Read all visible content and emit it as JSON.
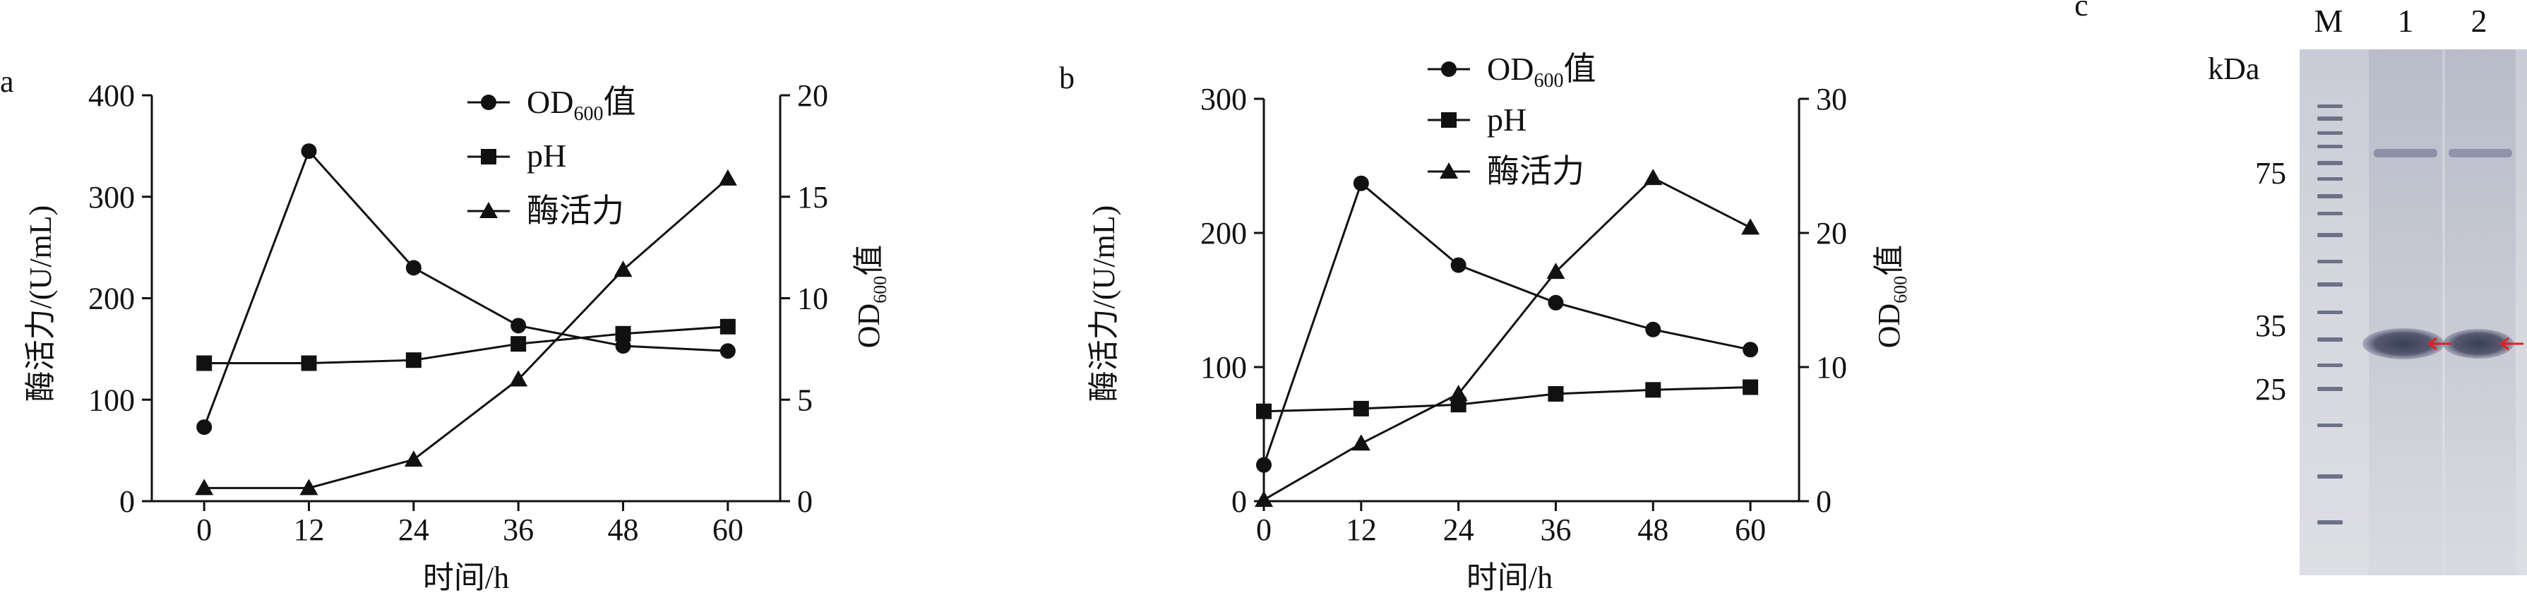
{
  "panels": [
    {
      "letter": "a",
      "xlabel": "时间/h",
      "ylabel_left": "酶活力/(U/mL)",
      "ylabel_right_main": "OD",
      "ylabel_right_sub": "600",
      "ylabel_right_tail": "值",
      "legend": [
        {
          "marker": "circle",
          "main": "OD",
          "sub": "600",
          "tail": "值"
        },
        {
          "marker": "square",
          "main": "pH",
          "sub": "",
          "tail": ""
        },
        {
          "marker": "triangle",
          "main": "酶活力",
          "sub": "",
          "tail": ""
        }
      ]
    },
    {
      "letter": "b",
      "xlabel": "时间/h",
      "ylabel_left": "酶活力/(U/mL)",
      "ylabel_right_main": "OD",
      "ylabel_right_sub": "600",
      "ylabel_right_tail": "值",
      "legend": [
        {
          "marker": "circle",
          "main": "OD",
          "sub": "600",
          "tail": "值"
        },
        {
          "marker": "square",
          "main": "pH",
          "sub": "",
          "tail": ""
        },
        {
          "marker": "triangle",
          "main": "酶活力",
          "sub": "",
          "tail": ""
        }
      ]
    }
  ],
  "chart_data": [
    {
      "type": "line",
      "panel": "a",
      "x": [
        0,
        12,
        24,
        36,
        48,
        60
      ],
      "x_ticks": [
        "0",
        "12",
        "24",
        "36",
        "48",
        "60"
      ],
      "xlim": [
        -6,
        66
      ],
      "xlabel": "时间/h",
      "ylabel": "酶活力/(U/mL)",
      "ylim_left": [
        0,
        400
      ],
      "yticks_left": [
        "0",
        "100",
        "200",
        "300",
        "400"
      ],
      "y2label": "OD600值",
      "ylim_right": [
        0,
        20
      ],
      "yticks_right": [
        "0",
        "5",
        "10",
        "15",
        "20"
      ],
      "series": [
        {
          "name": "OD600值",
          "marker": "circle",
          "axis": "left",
          "values": [
            73,
            345,
            230,
            173,
            153,
            148
          ]
        },
        {
          "name": "pH",
          "marker": "square",
          "axis": "left",
          "values": [
            136,
            136,
            139,
            155,
            165,
            172
          ]
        },
        {
          "name": "酶活力",
          "marker": "triangle",
          "axis": "left",
          "values": [
            13,
            13,
            41,
            120,
            228,
            318
          ]
        }
      ]
    },
    {
      "type": "line",
      "panel": "b",
      "x": [
        0,
        12,
        24,
        36,
        48,
        60
      ],
      "x_ticks": [
        "0",
        "12",
        "24",
        "36",
        "48",
        "60"
      ],
      "xlim": [
        0,
        66
      ],
      "xlabel": "时间/h",
      "ylabel": "酶活力/(U/mL)",
      "ylim_left": [
        0,
        300
      ],
      "yticks_left": [
        "0",
        "100",
        "200",
        "300"
      ],
      "y2label": "OD600值",
      "ylim_right": [
        0,
        30
      ],
      "yticks_right": [
        "0",
        "10",
        "20",
        "30"
      ],
      "series": [
        {
          "name": "OD600值",
          "marker": "circle",
          "axis": "left",
          "values": [
            27,
            237,
            176,
            148,
            128,
            113
          ]
        },
        {
          "name": "pH",
          "marker": "square",
          "axis": "left",
          "values": [
            67,
            69,
            72,
            80,
            83,
            85
          ]
        },
        {
          "name": "酶活力",
          "marker": "triangle",
          "axis": "left",
          "values": [
            1,
            43,
            80,
            171,
            241,
            204
          ]
        }
      ]
    }
  ],
  "gel": {
    "letter": "c",
    "unit_label": "kDa",
    "lane_labels": [
      "M",
      "1",
      "2"
    ],
    "marker_labels": [
      "75",
      "35",
      "25"
    ],
    "marker_kda": [
      75,
      35,
      25
    ],
    "arrow_color": "#e02020"
  }
}
